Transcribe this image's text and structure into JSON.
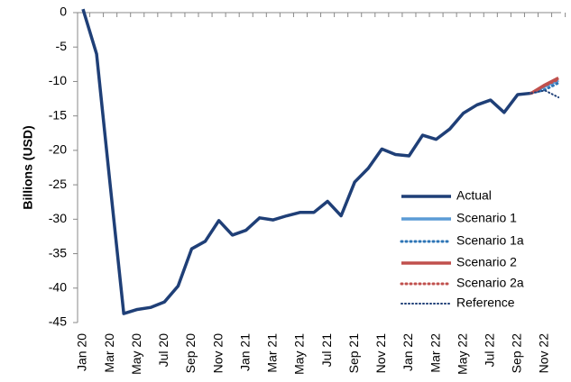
{
  "chart_data": {
    "type": "line",
    "y_label": "Billions (USD)",
    "categories": [
      "Jan 20",
      null,
      "Mar 20",
      null,
      "May 20",
      null,
      "Jul 20",
      null,
      "Sep 20",
      null,
      "Nov 20",
      null,
      "Jan 21",
      null,
      "Mar 21",
      null,
      "May 21",
      null,
      "Jul 21",
      null,
      "Sep 21",
      null,
      "Nov 21",
      null,
      "Jan 22",
      null,
      "Mar 22",
      null,
      "May 22",
      null,
      "Jul 22",
      null,
      "Sep 22",
      null,
      "Nov 22",
      null
    ],
    "series": [
      {
        "name": "Actual",
        "color": "#1f3f77",
        "style": "solid",
        "values": [
          0.5,
          -6,
          -25,
          -43.7,
          -43.1,
          -42.8,
          -42,
          -39.7,
          -34.3,
          -33.2,
          -30.2,
          -32.3,
          -31.6,
          -29.8,
          -30.1,
          -29.5,
          -29,
          -29,
          -27.4,
          -29.5,
          -24.6,
          -22.6,
          -19.8,
          -20.6,
          -20.8,
          -17.8,
          -18.4,
          -16.9,
          -14.6,
          -13.4,
          -12.7,
          -14.5,
          -11.9,
          -11.7,
          null,
          null
        ]
      },
      {
        "name": "Scenario 1",
        "color": "#5b9bd5",
        "style": "solid",
        "values": [
          null,
          null,
          null,
          null,
          null,
          null,
          null,
          null,
          null,
          null,
          null,
          null,
          null,
          null,
          null,
          null,
          null,
          null,
          null,
          null,
          null,
          null,
          null,
          null,
          null,
          null,
          null,
          null,
          null,
          null,
          null,
          null,
          null,
          -11.7,
          -10.7,
          -9.8
        ]
      },
      {
        "name": "Scenario 1a",
        "color": "#2e75b6",
        "style": "dotted",
        "values": [
          null,
          null,
          null,
          null,
          null,
          null,
          null,
          null,
          null,
          null,
          null,
          null,
          null,
          null,
          null,
          null,
          null,
          null,
          null,
          null,
          null,
          null,
          null,
          null,
          null,
          null,
          null,
          null,
          null,
          null,
          null,
          null,
          null,
          -11.7,
          -11.2,
          -10.2
        ]
      },
      {
        "name": "Scenario 2",
        "color": "#c0504d",
        "style": "solid",
        "values": [
          null,
          null,
          null,
          null,
          null,
          null,
          null,
          null,
          null,
          null,
          null,
          null,
          null,
          null,
          null,
          null,
          null,
          null,
          null,
          null,
          null,
          null,
          null,
          null,
          null,
          null,
          null,
          null,
          null,
          null,
          null,
          null,
          null,
          -11.7,
          -10.5,
          -9.5
        ]
      },
      {
        "name": "Scenario 2a",
        "color": "#c0504d",
        "style": "dotted",
        "values": [
          null,
          null,
          null,
          null,
          null,
          null,
          null,
          null,
          null,
          null,
          null,
          null,
          null,
          null,
          null,
          null,
          null,
          null,
          null,
          null,
          null,
          null,
          null,
          null,
          null,
          null,
          null,
          null,
          null,
          null,
          null,
          null,
          null,
          -11.7,
          -10.6,
          -9.7
        ]
      },
      {
        "name": "Reference",
        "color": "#1f3f77",
        "style": "dotted-thin",
        "values": [
          null,
          null,
          null,
          null,
          null,
          null,
          null,
          null,
          null,
          null,
          null,
          null,
          null,
          null,
          null,
          null,
          null,
          null,
          null,
          null,
          null,
          null,
          null,
          null,
          null,
          null,
          null,
          null,
          null,
          null,
          null,
          null,
          null,
          -11.7,
          -11.3,
          -12.3
        ]
      }
    ],
    "ylim": [
      -45,
      0
    ],
    "yticks": [
      0,
      -5,
      -10,
      -15,
      -20,
      -25,
      -30,
      -35,
      -40,
      -45
    ],
    "grid": false,
    "legend": "lower right"
  }
}
